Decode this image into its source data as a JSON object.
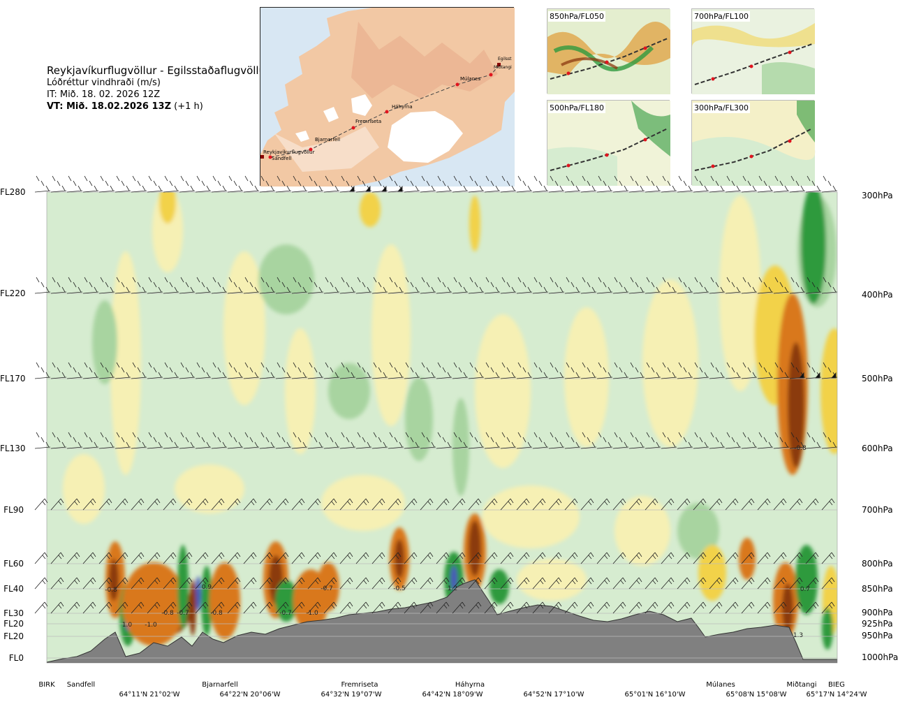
{
  "header": {
    "route": "Reykjavíkurflugvöllur - Egilsstaðaflugvöllur",
    "variable": "Lóðréttur vindhraði (m/s)",
    "it": "IT: Mið. 18. 02. 2026 12Z",
    "vt_bold": "VT: Mið. 18.02.2026 13Z",
    "vt_suffix": " (+1 h)"
  },
  "map": {
    "points": [
      "Reykjavíkurflugvöllur",
      "Sandfell",
      "Bjarnarfell",
      "Fremriseta",
      "Háhyrna",
      "Múlanes",
      "Egilsst",
      "Miðtangi"
    ]
  },
  "thumbnails": [
    "850hPa/FL050",
    "700hPa/FL100",
    "500hPa/FL180",
    "300hPa/FL300"
  ],
  "colors": {
    "strong_down": "#8b3a10",
    "down": "#d9781a",
    "weak_down": "#f2d24a",
    "near_zero_down": "#f6f0b4",
    "near_zero_up": "#d6ecd0",
    "up": "#a8d4a0",
    "strong_up": "#2f9a3e",
    "very_strong_up": "#4a5ab8",
    "terrain": "#808080"
  },
  "chart_data": {
    "type": "heatmap",
    "title": "Lóðréttur vindhraði (m/s)",
    "left_axis": [
      "FL280",
      "FL220",
      "FL170",
      "FL130",
      "FL90",
      "FL60",
      "FL40",
      "FL30",
      "FL20",
      "FL20",
      "FL0"
    ],
    "right_axis": [
      "300hPa",
      "400hPa",
      "500hPa",
      "600hPa",
      "700hPa",
      "800hPa",
      "850hPa",
      "900hPa",
      "925hPa",
      "950hPa",
      "1000hPa"
    ],
    "bottom_points": [
      "BIRK",
      "Sandfell",
      "Bjarnarfell",
      "Fremriseta",
      "Háhyrna",
      "Múlanes",
      "Miðtangi",
      "BIEG"
    ],
    "bottom_coords": [
      "64°11'N 21°02'W",
      "64°22'N 20°06'W",
      "64°32'N 19°07'W",
      "64°42'N 18°09'W",
      "64°52'N 17°10'W",
      "65°01'N 16°10'W",
      "65°08'N 15°08'W",
      "65°17'N 14°24'W"
    ],
    "contour_labels": [
      "-0.8",
      "1.0",
      "-1.0",
      "-0.8",
      "-0.7",
      "0.9",
      "-0.8",
      "-0.7",
      "-1.0",
      "-0.7",
      "-0.5",
      "1.2",
      "0.7",
      "1.3",
      "-0.8"
    ]
  }
}
